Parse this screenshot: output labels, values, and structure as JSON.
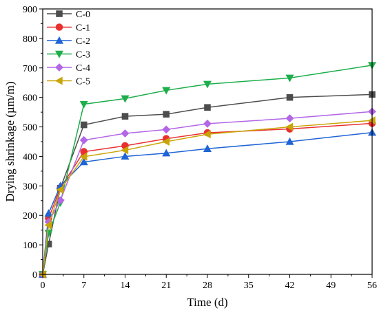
{
  "chart_data": {
    "type": "line",
    "title": "",
    "xlabel": "Time (d)",
    "ylabel": "Drying shrinkage (µm/m)",
    "xlim": [
      0,
      56
    ],
    "ylim": [
      0,
      900
    ],
    "xticks": [
      0,
      7,
      14,
      21,
      28,
      35,
      42,
      49,
      56
    ],
    "yticks": [
      0,
      100,
      200,
      300,
      400,
      500,
      600,
      700,
      800,
      900
    ],
    "x": [
      0,
      1,
      3,
      7,
      14,
      21,
      28,
      42,
      56
    ],
    "grid": false,
    "legend_position": "top-left",
    "series": [
      {
        "name": "C-0",
        "color": "#4d4d4d",
        "marker": "square",
        "values": [
          0,
          103,
          292,
          507,
          536,
          543,
          566,
          600,
          610
        ]
      },
      {
        "name": "C-1",
        "color": "#e8312f",
        "marker": "circle",
        "values": [
          0,
          190,
          293,
          416,
          436,
          460,
          480,
          493,
          512
        ]
      },
      {
        "name": "C-2",
        "color": "#1f64d6",
        "marker": "triangle-up",
        "values": [
          0,
          207,
          300,
          381,
          400,
          411,
          426,
          450,
          481
        ]
      },
      {
        "name": "C-3",
        "color": "#1dae4b",
        "marker": "triangle-down",
        "values": [
          0,
          140,
          243,
          577,
          596,
          624,
          645,
          666,
          709
        ]
      },
      {
        "name": "C-4",
        "color": "#b366e6",
        "marker": "diamond",
        "values": [
          0,
          178,
          251,
          455,
          478,
          491,
          511,
          529,
          552
        ]
      },
      {
        "name": "C-5",
        "color": "#c9a406",
        "marker": "triangle-left",
        "values": [
          0,
          167,
          287,
          399,
          421,
          450,
          475,
          500,
          522
        ]
      }
    ]
  }
}
